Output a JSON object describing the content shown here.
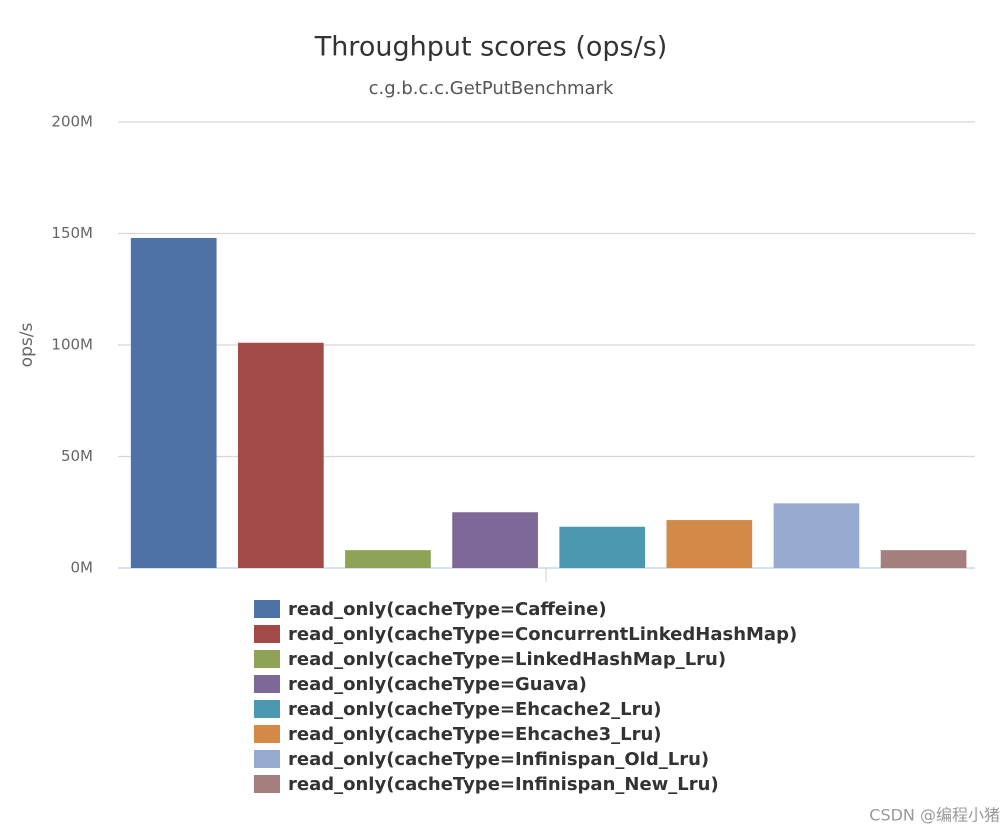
{
  "chart_data": {
    "type": "bar",
    "title": "Throughput scores (ops/s)",
    "subtitle": "c.g.b.c.c.GetPutBenchmark",
    "y_label": "ops/s",
    "categories": [
      null
    ],
    "series": [
      {
        "name": "read_only(cacheType=Caffeine)",
        "color": "#4e72a6",
        "values": [
          148000000
        ]
      },
      {
        "name": "read_only(cacheType=ConcurrentLinkedHashMap)",
        "color": "#a24a45",
        "values": [
          101000000
        ]
      },
      {
        "name": "read_only(cacheType=LinkedHashMap_Lru)",
        "color": "#8fa356",
        "values": [
          8000000
        ]
      },
      {
        "name": "read_only(cacheType=Guava)",
        "color": "#7e6898",
        "values": [
          25000000
        ]
      },
      {
        "name": "read_only(cacheType=Ehcache2_Lru)",
        "color": "#4b98b0",
        "values": [
          18500000
        ]
      },
      {
        "name": "read_only(cacheType=Ehcache3_Lru)",
        "color": "#d38a47",
        "values": [
          21500000
        ]
      },
      {
        "name": "read_only(cacheType=Infinispan_Old_Lru)",
        "color": "#96abcf",
        "values": [
          29000000
        ]
      },
      {
        "name": "read_only(cacheType=Infinispan_New_Lru)",
        "color": "#a47f7e",
        "values": [
          8000000
        ]
      }
    ],
    "ylim": [
      0,
      200000000
    ],
    "yticks": [
      {
        "value": 0,
        "label": "0M"
      },
      {
        "value": 50000000,
        "label": "50M"
      },
      {
        "value": 100000000,
        "label": "100M"
      },
      {
        "value": 150000000,
        "label": "150M"
      },
      {
        "value": 200000000,
        "label": "200M"
      }
    ],
    "grid": true,
    "watermark": "CSDN @编程小猪"
  }
}
